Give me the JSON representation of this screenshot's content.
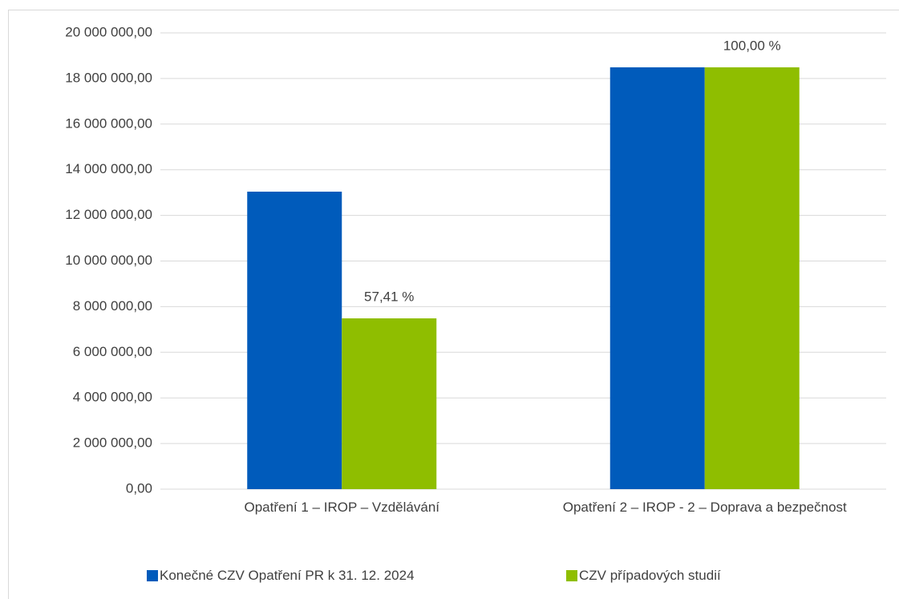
{
  "chart_data": {
    "type": "bar",
    "categories": [
      "Opatření 1 – IROP – Vzdělávání",
      "Opatření 2 – IROP - 2 – Doprava a bezpečnost"
    ],
    "series": [
      {
        "name": "Konečné CZV Opatření PR k 31. 12. 2024",
        "color": "#005bbb",
        "values": [
          13040000,
          18490000
        ]
      },
      {
        "name": "CZV případových studií",
        "color": "#8fbe00",
        "values": [
          7486000,
          18490000
        ],
        "percent_labels": [
          "57,41 %",
          "100,00 %"
        ]
      }
    ],
    "ylim": [
      0,
      20000000
    ],
    "yticks": [
      {
        "value": 0,
        "label": "0,00"
      },
      {
        "value": 2000000,
        "label": "2 000 000,00"
      },
      {
        "value": 4000000,
        "label": "4 000 000,00"
      },
      {
        "value": 6000000,
        "label": "6 000 000,00"
      },
      {
        "value": 8000000,
        "label": "8 000 000,00"
      },
      {
        "value": 10000000,
        "label": "10 000 000,00"
      },
      {
        "value": 12000000,
        "label": "12 000 000,00"
      },
      {
        "value": 14000000,
        "label": "14 000 000,00"
      },
      {
        "value": 16000000,
        "label": "16 000 000,00"
      },
      {
        "value": 18000000,
        "label": "18 000 000,00"
      },
      {
        "value": 20000000,
        "label": "20 000 000,00"
      }
    ],
    "grid": true,
    "legend": "bottom"
  }
}
